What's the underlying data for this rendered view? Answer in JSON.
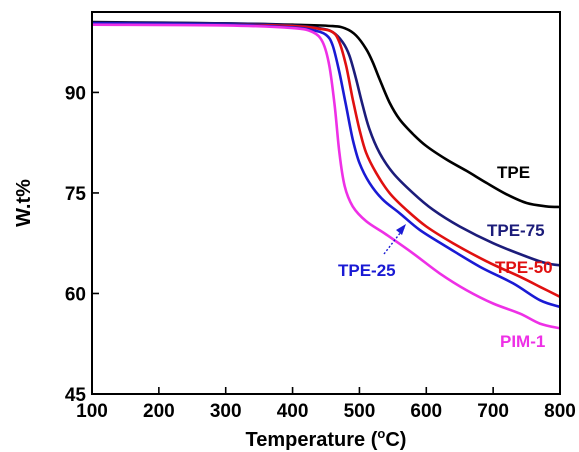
{
  "chart_data": {
    "type": "line",
    "title": "",
    "xlabel": "Temperature (°C)",
    "xlabel_main": "Temperature (",
    "xlabel_sup": "o",
    "xlabel_end": "C)",
    "ylabel": "W.t%",
    "xlim": [
      100,
      800
    ],
    "ylim": [
      45,
      102
    ],
    "xticks": [
      100,
      200,
      300,
      400,
      500,
      600,
      700,
      800
    ],
    "yticks": [
      45,
      60,
      75,
      90
    ],
    "grid": false,
    "legend": "inline labels",
    "series": [
      {
        "name": "TPE",
        "color": "#000000",
        "points": [
          [
            100,
            100.5
          ],
          [
            300,
            100.3
          ],
          [
            400,
            100.1
          ],
          [
            460,
            99.9
          ],
          [
            480,
            99.5
          ],
          [
            495,
            98.5
          ],
          [
            510,
            96.5
          ],
          [
            520,
            94.5
          ],
          [
            530,
            92.0
          ],
          [
            545,
            88.5
          ],
          [
            560,
            86.0
          ],
          [
            580,
            83.8
          ],
          [
            600,
            82.0
          ],
          [
            630,
            80.0
          ],
          [
            660,
            78.3
          ],
          [
            690,
            76.5
          ],
          [
            720,
            74.8
          ],
          [
            750,
            73.5
          ],
          [
            780,
            73.0
          ],
          [
            800,
            72.9
          ]
        ]
      },
      {
        "name": "TPE-75",
        "color": "#1c1c7a",
        "points": [
          [
            100,
            100.4
          ],
          [
            300,
            100.3
          ],
          [
            400,
            100.0
          ],
          [
            440,
            99.6
          ],
          [
            460,
            99.0
          ],
          [
            475,
            97.5
          ],
          [
            485,
            95.5
          ],
          [
            495,
            92.0
          ],
          [
            505,
            88.0
          ],
          [
            515,
            84.5
          ],
          [
            530,
            81.0
          ],
          [
            550,
            78.0
          ],
          [
            580,
            75.0
          ],
          [
            610,
            72.5
          ],
          [
            650,
            70.0
          ],
          [
            700,
            67.5
          ],
          [
            750,
            65.5
          ],
          [
            780,
            64.5
          ],
          [
            800,
            64.2
          ]
        ]
      },
      {
        "name": "TPE-50",
        "color": "#e01010",
        "points": [
          [
            100,
            100.2
          ],
          [
            300,
            100.1
          ],
          [
            400,
            99.9
          ],
          [
            440,
            99.5
          ],
          [
            460,
            99.0
          ],
          [
            470,
            97.5
          ],
          [
            480,
            94.0
          ],
          [
            490,
            89.0
          ],
          [
            500,
            84.5
          ],
          [
            510,
            81.0
          ],
          [
            525,
            78.0
          ],
          [
            545,
            75.0
          ],
          [
            570,
            72.5
          ],
          [
            600,
            70.0
          ],
          [
            640,
            67.5
          ],
          [
            690,
            64.8
          ],
          [
            740,
            62.5
          ],
          [
            770,
            61.0
          ],
          [
            800,
            59.5
          ]
        ]
      },
      {
        "name": "TPE-25",
        "color": "#1a1ad4",
        "points": [
          [
            100,
            100.3
          ],
          [
            300,
            100.1
          ],
          [
            400,
            99.7
          ],
          [
            430,
            99.3
          ],
          [
            450,
            98.6
          ],
          [
            460,
            97.0
          ],
          [
            470,
            93.0
          ],
          [
            480,
            88.0
          ],
          [
            490,
            83.0
          ],
          [
            500,
            79.5
          ],
          [
            515,
            76.5
          ],
          [
            535,
            74.0
          ],
          [
            560,
            72.0
          ],
          [
            590,
            69.5
          ],
          [
            630,
            67.0
          ],
          [
            680,
            64.0
          ],
          [
            730,
            61.5
          ],
          [
            770,
            59.0
          ],
          [
            800,
            58.0
          ]
        ]
      },
      {
        "name": "PIM-1",
        "color": "#ee30e6",
        "points": [
          [
            100,
            100.1
          ],
          [
            300,
            100.0
          ],
          [
            400,
            99.6
          ],
          [
            430,
            99.0
          ],
          [
            445,
            97.5
          ],
          [
            455,
            94.0
          ],
          [
            463,
            88.0
          ],
          [
            470,
            81.0
          ],
          [
            478,
            76.0
          ],
          [
            490,
            73.0
          ],
          [
            510,
            70.8
          ],
          [
            540,
            68.8
          ],
          [
            580,
            66.0
          ],
          [
            620,
            63.0
          ],
          [
            660,
            60.5
          ],
          [
            700,
            58.5
          ],
          [
            740,
            57.0
          ],
          [
            770,
            55.5
          ],
          [
            800,
            54.8
          ]
        ]
      }
    ],
    "labels": [
      {
        "text": "TPE",
        "color": "#000000"
      },
      {
        "text": "TPE-75",
        "color": "#1c1c7a"
      },
      {
        "text": "TPE-50",
        "color": "#e01010"
      },
      {
        "text": "TPE-25",
        "color": "#1a1ad4"
      },
      {
        "text": "PIM-1",
        "color": "#ee30e6"
      }
    ]
  }
}
